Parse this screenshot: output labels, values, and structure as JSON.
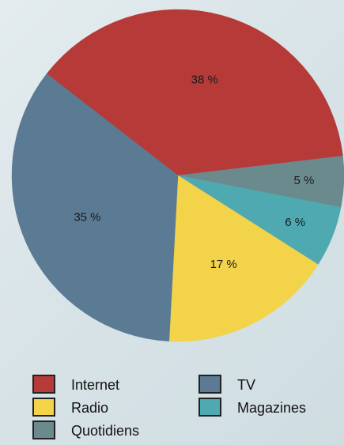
{
  "chart_data": {
    "type": "pie",
    "slices": [
      {
        "label": "Internet",
        "value": 38,
        "display": "38 %",
        "color": "#b63a38"
      },
      {
        "label": "Quotidiens",
        "value": 5,
        "display": "5 %",
        "color": "#6b8a8d"
      },
      {
        "label": "Magazines",
        "value": 6,
        "display": "6 %",
        "color": "#4eaab0"
      },
      {
        "label": "Radio",
        "value": 17,
        "display": "17 %",
        "color": "#f2d34a"
      },
      {
        "label": "TV",
        "value": 35,
        "display": "35 %",
        "color": "#5b7a93"
      }
    ],
    "legend": {
      "placement": "bottom",
      "columns": [
        [
          "Internet",
          "Radio",
          "Quotidiens"
        ],
        [
          "TV",
          "Magazines"
        ]
      ]
    }
  }
}
